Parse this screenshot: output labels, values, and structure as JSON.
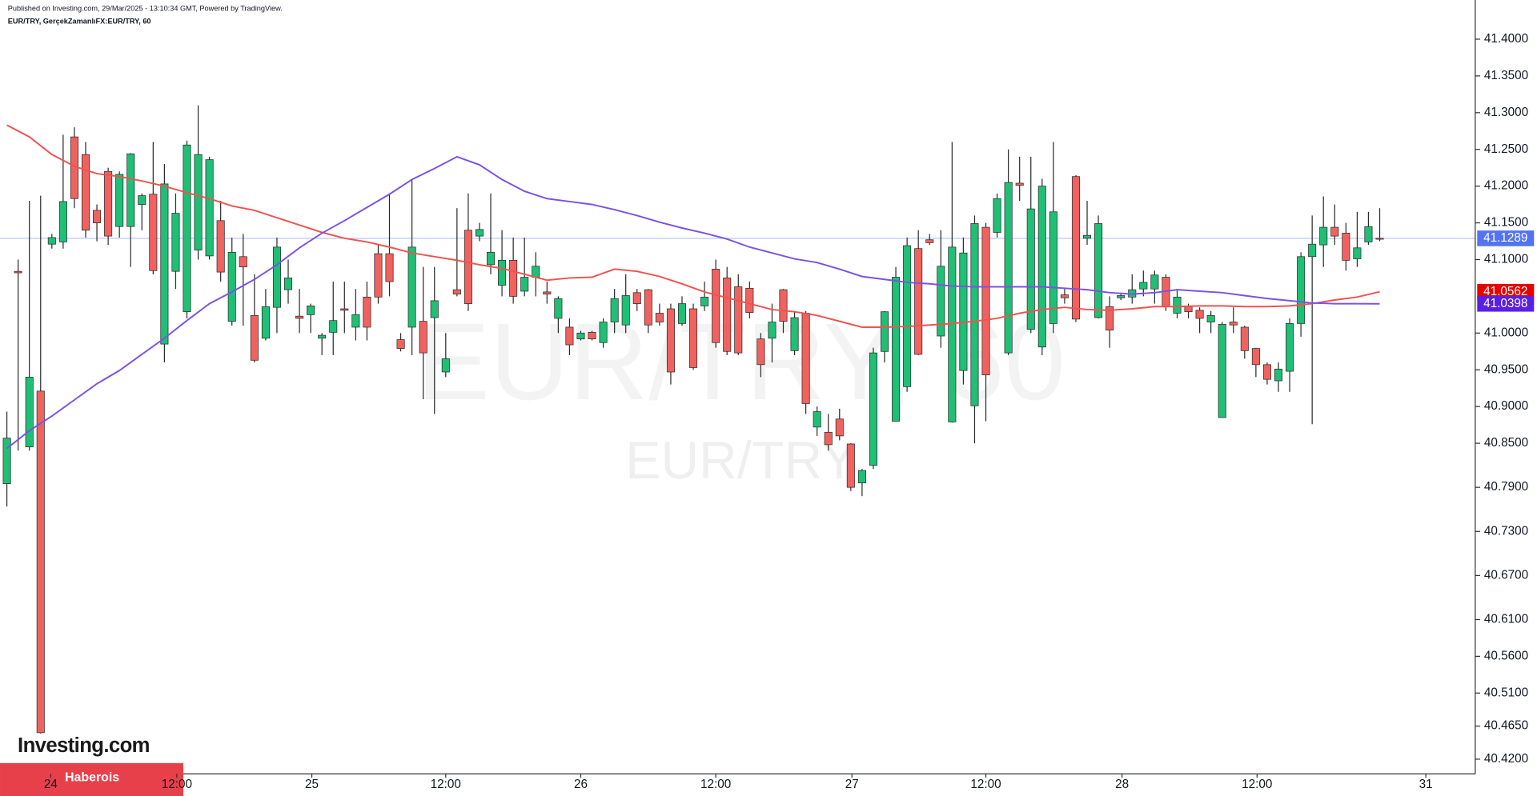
{
  "chart_data": {
    "type": "candlestick",
    "header": "Published on Investing.com, 29/Mar/2025 - 13:10:34 GMT, Powered by TradingView.",
    "symbol": "EUR/TRY, GerçekZamanlıFX:EUR/TRY, 60",
    "watermark": "EUR/TRY, 60",
    "watermark_sub": "EUR/TRY",
    "logo": "Investing.com",
    "banner": "Haberois",
    "up_color": "#1fbf75",
    "down_color": "#f0625f",
    "open": [
      40.795,
      41.084,
      40.845,
      40.921,
      41.121,
      41.124,
      41.267,
      41.243,
      41.167,
      41.22,
      41.145,
      41.145,
      41.175,
      41.189,
      40.985,
      41.084,
      41.029,
      41.113,
      41.105,
      41.153,
      41.016,
      41.104,
      41.024,
      40.993,
      41.035,
      41.059,
      41.023,
      41.025,
      40.993,
      41.001,
      41.033,
      41.008,
      41.049,
      41.108,
      41.108,
      40.991,
      41.008,
      41.016,
      41.021,
      40.947,
      41.059,
      41.14,
      41.132,
      41.093,
      41.065,
      41.099,
      41.057,
      41.076,
      41.056,
      41.02,
      41.008,
      40.992,
      41.001,
      40.987,
      41.015,
      41.011,
      41.055,
      41.059,
      41.027,
      41.033,
      41.013,
      41.033,
      41.037,
      41.087,
      41.075,
      41.063,
      41.061,
      40.992,
      40.993,
      41.059,
      40.976,
      41.027,
      40.872,
      40.865,
      40.883,
      40.849,
      40.796,
      40.82,
      40.975,
      40.88,
      40.927,
      41.115,
      41.127,
      40.996,
      40.879,
      40.949,
      40.901,
      41.144,
      41.137,
      40.973,
      41.204,
      41.005,
      40.981,
      41.013,
      41.052,
      41.213,
      41.129,
      41.021,
      41.036,
      41.048,
      41.049,
      41.06,
      41.06,
      41.076,
      41.027,
      41.036,
      41.031,
      41.015,
      40.885,
      41.015,
      41.008,
      40.979,
      40.957,
      40.935,
      40.948,
      41.013,
      41.104,
      41.12,
      41.144,
      41.136,
      41.101,
      41.124,
      41.129
    ],
    "high": [
      40.893,
      41.1,
      41.18,
      41.187,
      41.135,
      41.27,
      41.28,
      41.26,
      41.175,
      41.225,
      41.22,
      41.245,
      41.19,
      41.26,
      41.23,
      41.19,
      41.262,
      41.31,
      41.24,
      41.18,
      41.13,
      41.135,
      41.08,
      41.06,
      41.13,
      41.1,
      41.06,
      41.04,
      41.0,
      41.07,
      41.07,
      41.06,
      41.07,
      41.12,
      41.19,
      41.0,
      41.21,
      41.09,
      41.09,
      41.0,
      41.17,
      41.19,
      41.15,
      41.19,
      41.14,
      41.13,
      41.13,
      41.11,
      41.07,
      41.05,
      41.02,
      41.003,
      41.003,
      41.02,
      41.06,
      41.08,
      41.06,
      41.06,
      41.04,
      41.04,
      41.05,
      41.04,
      41.07,
      41.1,
      41.09,
      41.08,
      41.07,
      41.0,
      41.04,
      41.06,
      41.03,
      41.03,
      40.9,
      40.89,
      40.897,
      40.85,
      40.815,
      40.98,
      41.03,
      41.09,
      41.13,
      41.14,
      41.135,
      41.14,
      41.26,
      41.13,
      41.16,
      41.15,
      41.19,
      41.25,
      41.24,
      41.24,
      41.21,
      41.26,
      41.06,
      41.215,
      41.18,
      41.16,
      41.05,
      41.055,
      41.08,
      41.085,
      41.085,
      41.08,
      41.06,
      41.04,
      41.035,
      41.03,
      41.015,
      41.035,
      41.01,
      40.98,
      40.96,
      40.96,
      41.02,
      41.11,
      41.16,
      41.186,
      41.175,
      41.15,
      41.165,
      41.165,
      41.17
    ],
    "low": [
      40.764,
      40.84,
      40.84,
      40.455,
      41.115,
      41.115,
      41.17,
      41.13,
      41.125,
      41.12,
      41.13,
      41.09,
      41.14,
      41.08,
      40.96,
      41.06,
      41.02,
      41.1,
      41.1,
      41.07,
      41.01,
      41.01,
      40.96,
      40.99,
      41.0,
      41.04,
      41.0,
      41.0,
      40.97,
      40.97,
      41.0,
      40.99,
      40.99,
      41.04,
      41.05,
      40.975,
      40.97,
      40.91,
      40.89,
      40.94,
      41.05,
      41.03,
      41.125,
      41.08,
      41.05,
      41.04,
      41.05,
      41.05,
      41.04,
      41.0,
      40.97,
      40.99,
      40.99,
      40.98,
      41.0,
      41.0,
      41.03,
      41.0,
      41.01,
      40.93,
      41.01,
      40.95,
      41.03,
      40.98,
      40.97,
      40.97,
      41.02,
      40.94,
      40.96,
      41.0,
      40.97,
      40.89,
      40.86,
      40.84,
      40.854,
      40.785,
      40.778,
      40.815,
      40.96,
      40.88,
      40.92,
      40.97,
      41.12,
      40.98,
      40.878,
      40.93,
      40.85,
      40.88,
      41.13,
      40.97,
      41.18,
      41.0,
      40.97,
      41.0,
      41.04,
      41.015,
      41.12,
      41.02,
      40.98,
      41.045,
      41.04,
      41.05,
      41.04,
      41.03,
      41.02,
      41.02,
      41.0,
      41.0,
      40.885,
      41.0,
      40.965,
      40.94,
      40.93,
      40.92,
      40.92,
      40.995,
      40.876,
      41.09,
      41.12,
      41.085,
      41.09,
      41.12,
      41.125
    ],
    "close": [
      40.857,
      41.082,
      40.94,
      40.456,
      41.13,
      41.179,
      41.183,
      41.14,
      41.15,
      41.132,
      41.216,
      41.244,
      41.187,
      41.085,
      41.203,
      41.163,
      41.256,
      41.243,
      41.236,
      41.083,
      41.11,
      41.09,
      40.963,
      41.036,
      41.117,
      41.075,
      41.02,
      41.037,
      40.997,
      41.017,
      41.031,
      41.025,
      41.008,
      41.049,
      41.07,
      40.979,
      41.117,
      40.973,
      41.044,
      40.965,
      41.053,
      41.04,
      41.141,
      41.11,
      41.099,
      41.05,
      41.076,
      41.091,
      41.053,
      41.047,
      40.984,
      41.0,
      40.992,
      41.015,
      41.047,
      41.051,
      41.04,
      41.011,
      41.015,
      40.947,
      41.04,
      40.953,
      41.049,
      40.987,
      40.975,
      40.973,
      41.028,
      40.957,
      41.015,
      41.016,
      41.021,
      40.904,
      40.893,
      40.848,
      40.86,
      40.79,
      40.813,
      40.973,
      41.029,
      41.076,
      41.119,
      40.971,
      41.123,
      41.091,
      41.117,
      41.109,
      41.149,
      40.943,
      41.183,
      41.205,
      41.201,
      41.169,
      41.2,
      41.165,
      41.048,
      41.019,
      41.133,
      41.149,
      41.004,
      41.051,
      41.059,
      41.069,
      41.079,
      41.036,
      41.049,
      41.029,
      41.02,
      41.024,
      41.012,
      41.011,
      40.976,
      40.957,
      40.937,
      40.951,
      41.013,
      41.104,
      41.121,
      41.144,
      41.132,
      41.099,
      41.116,
      41.145,
      41.1289
    ],
    "series": [
      {
        "color": "#ef5350",
        "x": [
          0,
          2,
          4,
          6,
          8,
          10,
          12,
          14,
          16,
          18,
          20,
          22,
          24,
          26,
          28,
          30,
          32,
          34,
          36,
          38,
          40,
          42,
          44,
          46,
          48,
          50,
          52,
          54,
          56,
          58,
          60,
          62,
          64,
          66,
          68,
          70,
          72,
          74,
          76,
          78,
          80,
          82,
          84,
          86,
          88,
          90,
          92,
          94,
          96,
          98,
          100,
          102,
          104,
          106,
          108,
          110,
          112,
          114,
          116,
          118,
          120,
          122
        ],
        "values": [
          41.283,
          41.267,
          41.243,
          41.227,
          41.217,
          41.213,
          41.207,
          41.2,
          41.191,
          41.183,
          41.173,
          41.167,
          41.157,
          41.147,
          41.137,
          41.129,
          41.124,
          41.117,
          41.109,
          41.104,
          41.099,
          41.093,
          41.088,
          41.08,
          41.072,
          41.075,
          41.076,
          41.087,
          41.084,
          41.077,
          41.067,
          41.056,
          41.048,
          41.04,
          41.032,
          41.029,
          41.024,
          41.016,
          41.008,
          41.008,
          41.009,
          41.011,
          41.013,
          41.016,
          41.02,
          41.027,
          41.032,
          41.035,
          41.032,
          41.031,
          41.033,
          41.036,
          41.036,
          41.037,
          41.037,
          41.036,
          41.036,
          41.037,
          41.04,
          41.045,
          41.049,
          41.0562
        ]
      },
      {
        "color": "#7b52e8",
        "x": [
          0,
          2,
          4,
          6,
          8,
          10,
          12,
          14,
          16,
          18,
          20,
          22,
          24,
          26,
          28,
          30,
          32,
          34,
          36,
          38,
          40,
          42,
          44,
          46,
          48,
          50,
          52,
          54,
          56,
          58,
          60,
          62,
          64,
          66,
          68,
          70,
          72,
          74,
          76,
          78,
          80,
          82,
          84,
          86,
          88,
          90,
          92,
          94,
          96,
          98,
          100,
          102,
          104,
          106,
          108,
          110,
          112,
          114,
          116,
          118,
          120,
          122
        ],
        "values": [
          40.843,
          40.867,
          40.887,
          40.909,
          40.931,
          40.949,
          40.971,
          40.993,
          41.017,
          41.04,
          41.056,
          41.073,
          41.093,
          41.116,
          41.136,
          41.153,
          41.171,
          41.189,
          41.209,
          41.224,
          41.24,
          41.229,
          41.209,
          41.193,
          41.183,
          41.179,
          41.175,
          41.168,
          41.16,
          41.151,
          41.143,
          41.136,
          41.128,
          41.117,
          41.109,
          41.101,
          41.096,
          41.087,
          41.077,
          41.073,
          41.069,
          41.067,
          41.064,
          41.063,
          41.063,
          41.063,
          41.063,
          41.061,
          41.059,
          41.055,
          41.053,
          41.055,
          41.059,
          41.057,
          41.055,
          41.051,
          41.047,
          41.044,
          41.041,
          41.04,
          41.04,
          41.0398
        ]
      }
    ],
    "price_labels": [
      {
        "value": 41.1289,
        "color": "#5473f2"
      },
      {
        "value": 41.0562,
        "color": "#e60000"
      },
      {
        "value": 41.0398,
        "color": "#5a1fe6"
      }
    ],
    "ylim": [
      40.4,
      41.44
    ],
    "yticks": [
      {
        "value": 41.4,
        "label": "41.4000"
      },
      {
        "value": 41.35,
        "label": "41.3500"
      },
      {
        "value": 41.3,
        "label": "41.3000"
      },
      {
        "value": 41.25,
        "label": "41.2500"
      },
      {
        "value": 41.2,
        "label": "41.2000"
      },
      {
        "value": 41.15,
        "label": "41.1500"
      },
      {
        "value": 41.1,
        "label": "41.1000"
      },
      {
        "value": 41.0,
        "label": "41.0000"
      },
      {
        "value": 40.95,
        "label": "40.9500"
      },
      {
        "value": 40.9,
        "label": "40.9000"
      },
      {
        "value": 40.85,
        "label": "40.8500"
      },
      {
        "value": 40.79,
        "label": "40.7900"
      },
      {
        "value": 40.73,
        "label": "40.7300"
      },
      {
        "value": 40.67,
        "label": "40.6700"
      },
      {
        "value": 40.61,
        "label": "40.6100"
      },
      {
        "value": 40.56,
        "label": "40.5600"
      },
      {
        "value": 40.51,
        "label": "40.5100"
      },
      {
        "value": 40.465,
        "label": "40.4650"
      },
      {
        "value": 40.42,
        "label": "40.4200"
      }
    ],
    "xlim": [
      -0.61,
      130.49
    ],
    "xticks": [
      {
        "value": 3.9,
        "label": "24"
      },
      {
        "value": 15.1,
        "label": "12:00"
      },
      {
        "value": 27.1,
        "label": "25"
      },
      {
        "value": 39.0,
        "label": "12:00"
      },
      {
        "value": 51.0,
        "label": "26"
      },
      {
        "value": 63.0,
        "label": "12:00"
      },
      {
        "value": 75.1,
        "label": "27"
      },
      {
        "value": 87.0,
        "label": "12:00"
      },
      {
        "value": 99.1,
        "label": "28"
      },
      {
        "value": 111.1,
        "label": "12:00"
      },
      {
        "value": 126.1,
        "label": "31"
      }
    ]
  }
}
